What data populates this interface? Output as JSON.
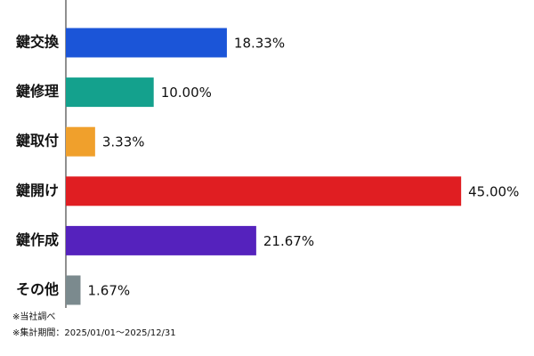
{
  "chart_data": {
    "type": "bar",
    "orientation": "horizontal",
    "categories": [
      "鍵交換",
      "鍵修理",
      "鍵取付",
      "鍵開け",
      "鍵作成",
      "その他"
    ],
    "values": [
      18.33,
      10.0,
      3.33,
      45.0,
      21.67,
      1.67
    ],
    "value_labels": [
      "18.33%",
      "10.00%",
      "3.33%",
      "45.00%",
      "21.67%",
      "1.67%"
    ],
    "colors": [
      "#1b55d8",
      "#14a18d",
      "#f0a02c",
      "#e01e22",
      "#5522bd",
      "#7b8a8e"
    ],
    "notes": [
      "※当社調べ",
      "※集計期間：2025/01/01～2025/12/31"
    ]
  }
}
